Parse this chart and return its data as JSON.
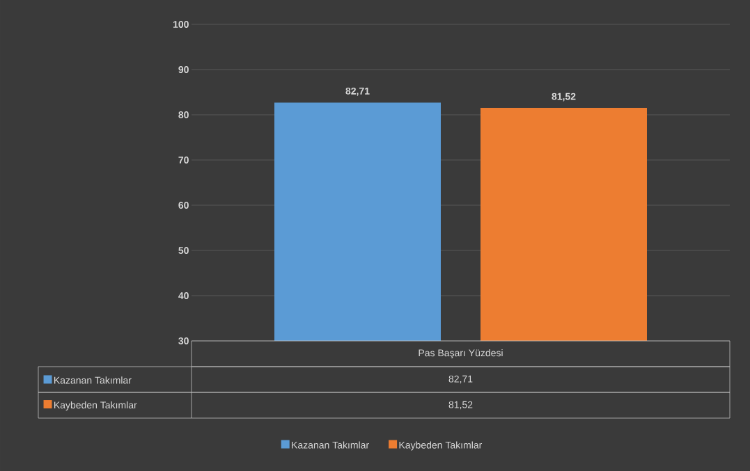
{
  "chart_data": {
    "type": "bar",
    "categories": [
      "Pas Başarı Yüzdesi"
    ],
    "series": [
      {
        "name": "Kazanan Takımlar",
        "color": "#5b9bd5",
        "values": [
          82.71
        ],
        "value_labels": [
          "82,71"
        ]
      },
      {
        "name": "Kaybeden Takımlar",
        "color": "#ed7d31",
        "values": [
          81.52
        ],
        "value_labels": [
          "81,52"
        ]
      }
    ],
    "ylim": [
      30,
      100
    ],
    "yticks": [
      30,
      40,
      50,
      60,
      70,
      80,
      90,
      100
    ],
    "grid": "y",
    "legend": "bottom"
  }
}
